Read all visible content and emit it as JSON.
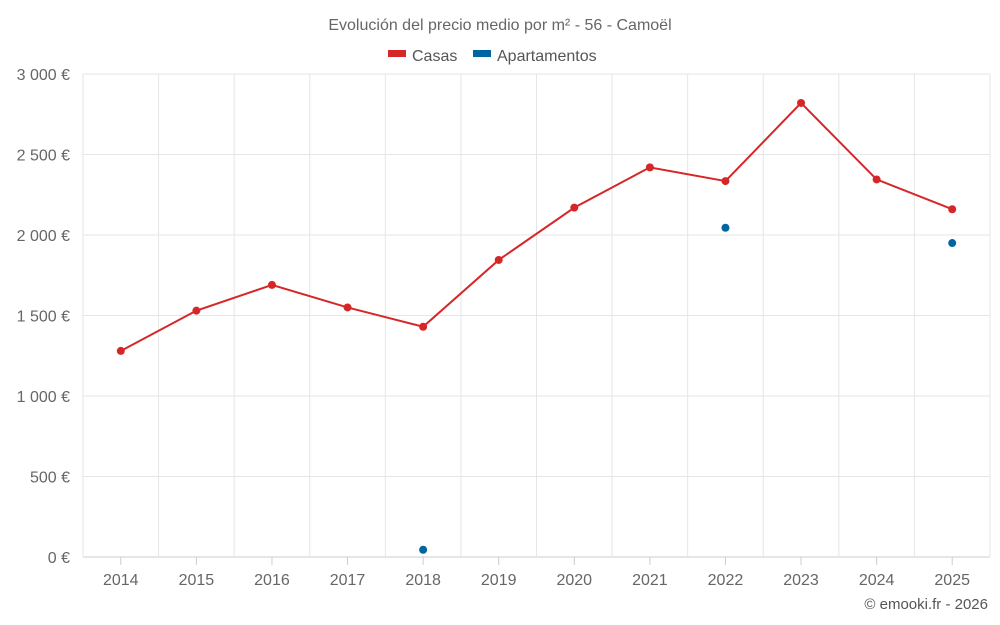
{
  "chart_data": {
    "type": "line",
    "title": "Evolución del precio medio por m² - 56 - Camoël",
    "categories": [
      "2014",
      "2015",
      "2016",
      "2017",
      "2018",
      "2019",
      "2020",
      "2021",
      "2022",
      "2023",
      "2024",
      "2025"
    ],
    "ylim": [
      0,
      3000
    ],
    "y_ticks": [
      0,
      500,
      1000,
      1500,
      2000,
      2500,
      3000
    ],
    "y_tick_labels": [
      "0 €",
      "500 €",
      "1 000 €",
      "1 500 €",
      "2 000 €",
      "2 500 €",
      "3 000 €"
    ],
    "legend_position": "top-center",
    "grid": true,
    "series": [
      {
        "name": "Casas",
        "color": "#d62728",
        "values": [
          1280,
          1530,
          1690,
          1550,
          1430,
          1845,
          2170,
          2420,
          2335,
          2820,
          2345,
          2160
        ]
      },
      {
        "name": "Apartamentos",
        "color": "#0066a1",
        "values": [
          null,
          null,
          null,
          null,
          45,
          null,
          null,
          null,
          2045,
          null,
          null,
          1950
        ]
      }
    ]
  },
  "credit": "© emooki.fr - 2026"
}
